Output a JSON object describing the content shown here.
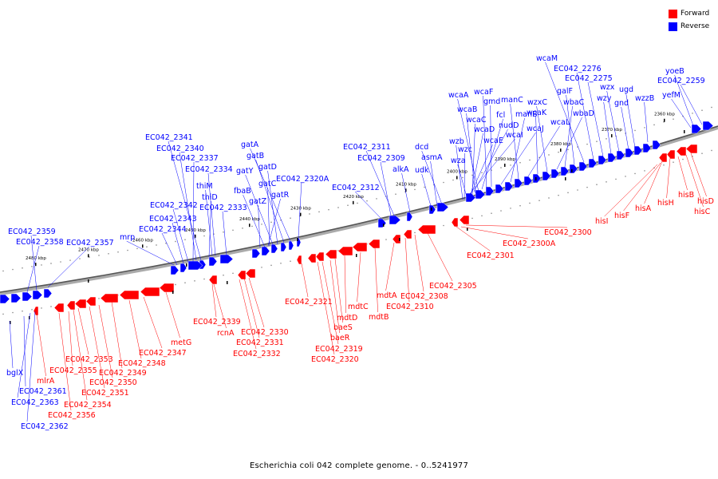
{
  "legend": {
    "forward_label": "Forward",
    "reverse_label": "Reverse",
    "forward_color": "#ff0000",
    "reverse_color": "#0000ff"
  },
  "caption": "Escherichia coli 042 complete genome. - 0..5241977",
  "kbp_ticks": [
    "2360 kbp",
    "2370 kbp",
    "2380 kbp",
    "2390 kbp",
    "2400 kbp",
    "2410 kbp",
    "2420 kbp",
    "2430 kbp",
    "2440 kbp",
    "2450 kbp",
    "2460 kbp",
    "2470 kbp",
    "2480 kbp"
  ],
  "genes_reverse": [
    "yoeB",
    "EC042_2259",
    "yefM",
    "wzzB",
    "ugd",
    "gnd",
    "wzx",
    "wzy",
    "EC042_2275",
    "EC042_2276",
    "wcaM",
    "galF",
    "wbaC",
    "wbaD",
    "wzxC",
    "wcaK",
    "wcaL",
    "manC",
    "manB",
    "wcaJ",
    "gmd",
    "fcl",
    "nudD",
    "wcaI",
    "wcaF",
    "wcaA",
    "wcaB",
    "wcaC",
    "wcaD",
    "wcaE",
    "wzb",
    "wzc",
    "wza",
    "dcd",
    "asmA",
    "udk",
    "alkA",
    "EC042_2311",
    "EC042_2309",
    "EC042_2312",
    "EC042_2320A",
    "gatA",
    "gatB",
    "gatD",
    "gatY",
    "gatC",
    "fbaB",
    "gatZ",
    "gatR",
    "EC042_2341",
    "EC042_2340",
    "EC042_2337",
    "EC042_2334",
    "thiM",
    "thiD",
    "EC042_2333",
    "EC042_2342",
    "EC042_2343",
    "EC042_2344",
    "mrp",
    "EC042_2357",
    "EC042_2359",
    "EC042_2358",
    "bglX",
    "EC042_2361",
    "EC042_2363",
    "EC042_2362"
  ],
  "genes_forward": [
    "hisD",
    "hisC",
    "hisB",
    "hisH",
    "hisA",
    "hisF",
    "hisI",
    "EC042_2300",
    "EC042_2300A",
    "EC042_2301",
    "EC042_2305",
    "EC042_2308",
    "EC042_2310",
    "mdtA",
    "mdtB",
    "mdtC",
    "mdtD",
    "baeS",
    "baeR",
    "EC042_2319",
    "EC042_2320",
    "EC042_2321",
    "EC042_2330",
    "EC042_2331",
    "EC042_2332",
    "rcnA",
    "EC042_2339",
    "metG",
    "EC042_2347",
    "EC042_2348",
    "EC042_2349",
    "EC042_2350",
    "EC042_2351",
    "EC042_2353",
    "EC042_2354",
    "EC042_2355",
    "EC042_2356",
    "mlrA"
  ]
}
